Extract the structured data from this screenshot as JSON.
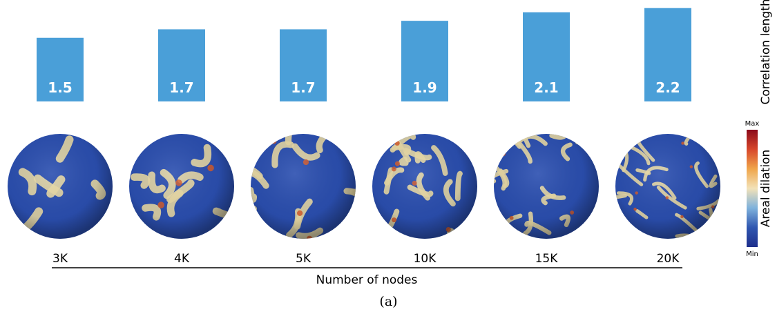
{
  "chart_data": {
    "type": "bar",
    "categories": [
      "3K",
      "4K",
      "5K",
      "10K",
      "15K",
      "20K"
    ],
    "values": [
      1.5,
      1.7,
      1.7,
      1.9,
      2.1,
      2.2
    ],
    "value_labels": [
      "1.5",
      "1.7",
      "1.7",
      "1.9",
      "2.1",
      "2.2"
    ],
    "ylabel": "Correlation length",
    "xlabel": "Number of nodes",
    "bar_color": "#4a9fd8",
    "label_color": "#ffffff"
  },
  "colorbar": {
    "label": "Areal dilation",
    "max_label": "Max",
    "min_label": "Min",
    "stops": [
      "#8b0a1a",
      "#d7472b",
      "#f0a54a",
      "#f2e2b8",
      "#7fb2dc",
      "#2f56b0",
      "#1e2f8c"
    ]
  },
  "spheres": {
    "base_color": "#2b4fb0",
    "crack_color": "#e9d9a4",
    "hot_color": "#d55a2a"
  },
  "caption": "(a)"
}
